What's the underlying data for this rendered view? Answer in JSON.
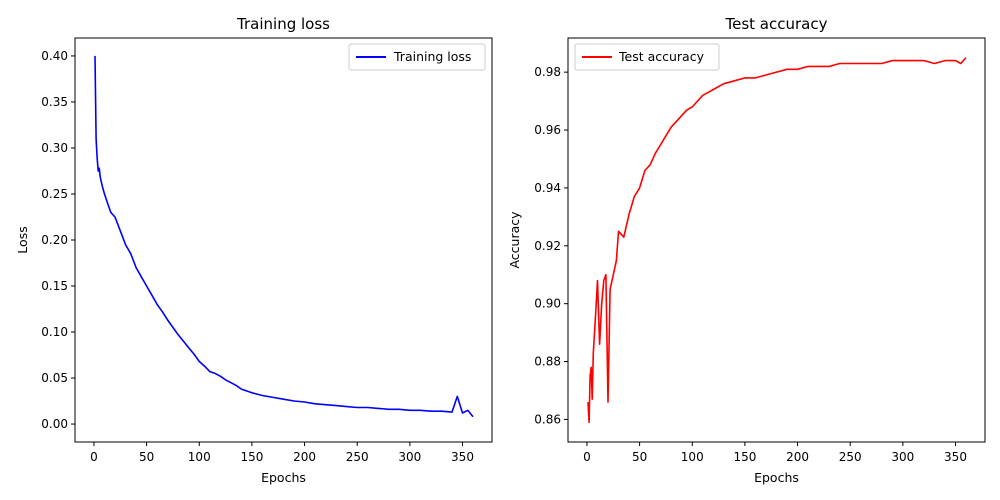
{
  "chart_data": [
    {
      "type": "line",
      "title": "Training loss",
      "xlabel": "Epochs",
      "ylabel": "Loss",
      "xlim": [
        -18,
        378
      ],
      "ylim": [
        -0.0195,
        0.4195
      ],
      "xticks": [
        0,
        50,
        100,
        150,
        200,
        250,
        300,
        350
      ],
      "yticks": [
        0.0,
        0.05,
        0.1,
        0.15,
        0.2,
        0.25,
        0.3,
        0.35,
        0.4
      ],
      "ytick_decimals": 2,
      "legend_position": "top-right",
      "grid": false,
      "series": [
        {
          "name": "Training loss",
          "color": "#0000ff",
          "x": [
            1,
            2,
            3,
            4,
            5,
            6,
            8,
            10,
            13,
            16,
            20,
            25,
            30,
            35,
            40,
            45,
            50,
            55,
            60,
            65,
            70,
            75,
            80,
            85,
            90,
            95,
            100,
            105,
            110,
            115,
            120,
            125,
            130,
            135,
            140,
            150,
            160,
            170,
            180,
            190,
            200,
            210,
            220,
            230,
            240,
            250,
            260,
            270,
            280,
            290,
            300,
            310,
            320,
            330,
            340,
            345,
            350,
            355,
            360
          ],
          "y": [
            0.4,
            0.31,
            0.29,
            0.275,
            0.278,
            0.268,
            0.258,
            0.25,
            0.24,
            0.23,
            0.225,
            0.21,
            0.195,
            0.185,
            0.17,
            0.16,
            0.15,
            0.14,
            0.13,
            0.122,
            0.113,
            0.105,
            0.097,
            0.09,
            0.083,
            0.076,
            0.068,
            0.063,
            0.057,
            0.055,
            0.052,
            0.048,
            0.045,
            0.042,
            0.038,
            0.034,
            0.031,
            0.029,
            0.027,
            0.025,
            0.024,
            0.022,
            0.021,
            0.02,
            0.019,
            0.018,
            0.018,
            0.017,
            0.016,
            0.016,
            0.015,
            0.015,
            0.014,
            0.014,
            0.013,
            0.03,
            0.012,
            0.015,
            0.008
          ]
        }
      ]
    },
    {
      "type": "line",
      "title": "Test accuracy",
      "xlabel": "Epochs",
      "ylabel": "Accuracy",
      "xlim": [
        -18,
        378
      ],
      "ylim": [
        0.8522,
        0.9918
      ],
      "xticks": [
        0,
        50,
        100,
        150,
        200,
        250,
        300,
        350
      ],
      "yticks": [
        0.86,
        0.88,
        0.9,
        0.92,
        0.94,
        0.96,
        0.98
      ],
      "ytick_decimals": 2,
      "legend_position": "top-left",
      "grid": false,
      "series": [
        {
          "name": "Test accuracy",
          "color": "#ff0000",
          "x": [
            1,
            2,
            3,
            4,
            5,
            6,
            8,
            10,
            12,
            14,
            16,
            18,
            20,
            22,
            25,
            28,
            30,
            35,
            40,
            45,
            50,
            55,
            60,
            65,
            70,
            75,
            80,
            85,
            90,
            95,
            100,
            105,
            110,
            115,
            120,
            125,
            130,
            140,
            150,
            160,
            170,
            180,
            190,
            200,
            210,
            220,
            230,
            240,
            250,
            260,
            270,
            280,
            290,
            300,
            310,
            320,
            330,
            340,
            350,
            355,
            360
          ],
          "y": [
            0.866,
            0.859,
            0.875,
            0.878,
            0.867,
            0.883,
            0.895,
            0.908,
            0.886,
            0.9,
            0.908,
            0.91,
            0.866,
            0.905,
            0.91,
            0.915,
            0.925,
            0.923,
            0.931,
            0.937,
            0.94,
            0.946,
            0.948,
            0.952,
            0.955,
            0.958,
            0.961,
            0.963,
            0.965,
            0.967,
            0.968,
            0.97,
            0.972,
            0.973,
            0.974,
            0.975,
            0.976,
            0.977,
            0.978,
            0.978,
            0.979,
            0.98,
            0.981,
            0.981,
            0.982,
            0.982,
            0.982,
            0.983,
            0.983,
            0.983,
            0.983,
            0.983,
            0.984,
            0.984,
            0.984,
            0.984,
            0.983,
            0.984,
            0.984,
            0.983,
            0.985
          ]
        }
      ]
    }
  ]
}
